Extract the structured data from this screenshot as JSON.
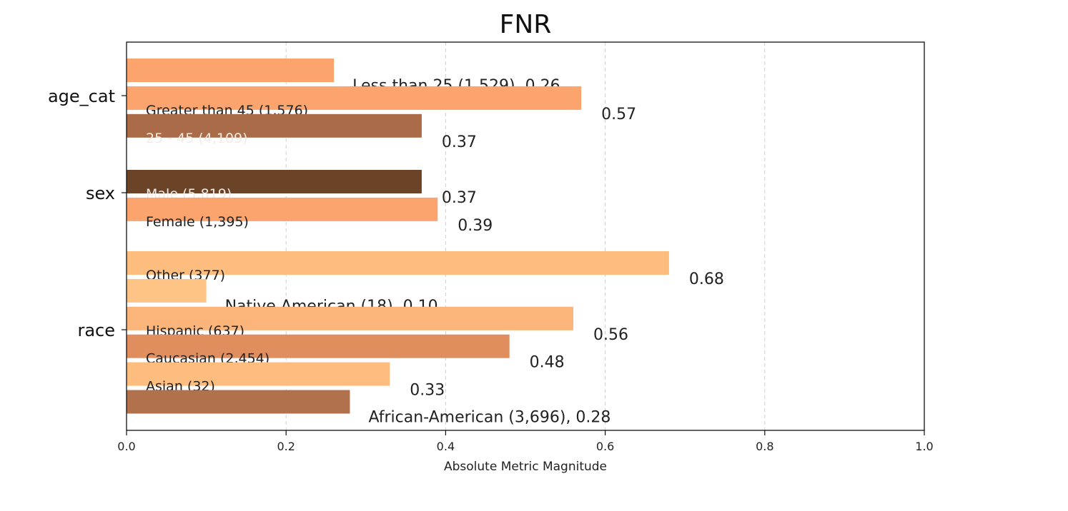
{
  "chart_data": {
    "type": "bar",
    "orientation": "horizontal",
    "title": "FNR",
    "xlabel": "Absolute Metric Magnitude",
    "ylabel": "",
    "xlim": [
      0,
      1.0
    ],
    "xticks": [
      "0.0",
      "0.2",
      "0.4",
      "0.6",
      "0.8",
      "1.0"
    ],
    "grid": "vertical dashed",
    "groups": [
      {
        "name": "age_cat",
        "bars": [
          {
            "label": "Less than 25 (1,529)",
            "value": 0.26,
            "value_label": "0.26",
            "color": "#fba46d",
            "label_inside": false
          },
          {
            "label": "Greater than 45 (1,576)",
            "value": 0.57,
            "value_label": "0.57",
            "color": "#fba46d",
            "label_inside": true
          },
          {
            "label": "25 - 45 (4,109)",
            "value": 0.37,
            "value_label": "0.37",
            "color": "#a96b48",
            "label_inside": true
          }
        ]
      },
      {
        "name": "sex",
        "bars": [
          {
            "label": "Male (5,819)",
            "value": 0.37,
            "value_label": "0.37",
            "color": "#6b4428",
            "label_inside": true
          },
          {
            "label": "Female (1,395)",
            "value": 0.39,
            "value_label": "0.39",
            "color": "#fba46d",
            "label_inside": true
          }
        ]
      },
      {
        "name": "race",
        "bars": [
          {
            "label": "Other (377)",
            "value": 0.68,
            "value_label": "0.68",
            "color": "#fdbd7e",
            "label_inside": true
          },
          {
            "label": "Native American (18)",
            "value": 0.1,
            "value_label": "0.10",
            "color": "#fec486",
            "label_inside": false
          },
          {
            "label": "Hispanic (637)",
            "value": 0.56,
            "value_label": "0.56",
            "color": "#fbb47a",
            "label_inside": true
          },
          {
            "label": "Caucasian (2,454)",
            "value": 0.48,
            "value_label": "0.48",
            "color": "#e08e5e",
            "label_inside": true
          },
          {
            "label": "Asian (32)",
            "value": 0.33,
            "value_label": "0.33",
            "color": "#fdbd7e",
            "label_inside": true
          },
          {
            "label": "African-American (3,696)",
            "value": 0.28,
            "value_label": "0.28",
            "color": "#b2714d",
            "label_inside": false
          }
        ]
      }
    ]
  }
}
